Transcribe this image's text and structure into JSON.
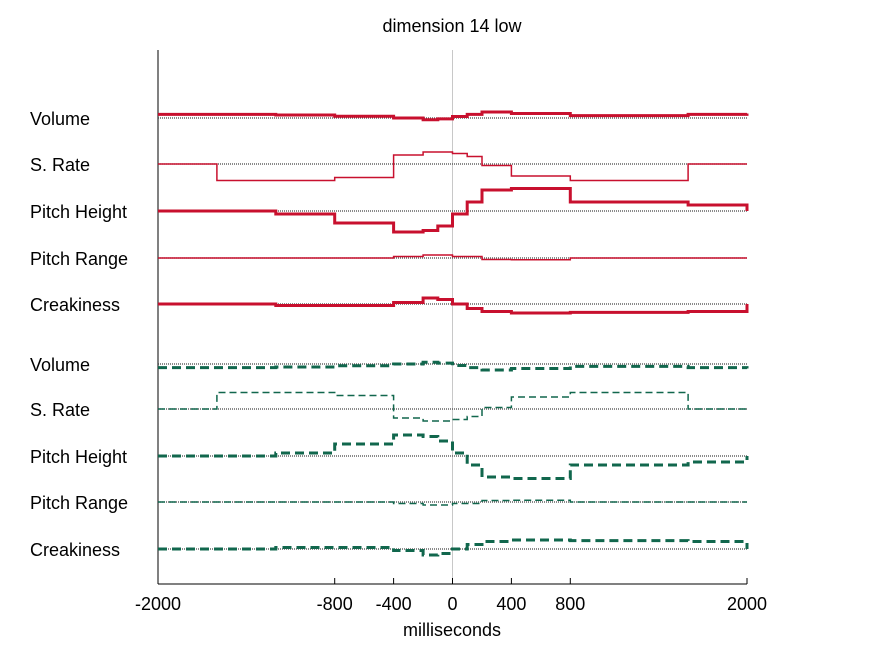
{
  "chart_data": {
    "type": "line",
    "title": "dimension 14 low",
    "xlabel": "milliseconds",
    "xlim": [
      -2000,
      2000
    ],
    "xticks": [
      -2000,
      -800,
      -400,
      0,
      400,
      800,
      2000
    ],
    "zero_line": true,
    "groups": [
      {
        "color": "#c8102e",
        "dash": "solid",
        "tracks": [
          {
            "label": "Volume",
            "width": 3,
            "points": [
              [
                -2000,
                0.12
              ],
              [
                -1200,
                0.1
              ],
              [
                -800,
                0.06
              ],
              [
                -400,
                0
              ],
              [
                -200,
                -0.06
              ],
              [
                -100,
                -0.03
              ],
              [
                0,
                0.05
              ],
              [
                100,
                0.12
              ],
              [
                200,
                0.2
              ],
              [
                400,
                0.15
              ],
              [
                800,
                0.08
              ],
              [
                1600,
                0.12
              ],
              [
                2000,
                0.15
              ]
            ]
          },
          {
            "label": "S. Rate",
            "width": 1.5,
            "points": [
              [
                -2000,
                0
              ],
              [
                -1600,
                -0.55
              ],
              [
                -800,
                -0.45
              ],
              [
                -400,
                -0.3
              ],
              [
                -400,
                0.3
              ],
              [
                -200,
                0.35
              ],
              [
                -200,
                0.4
              ],
              [
                -100,
                0.4
              ],
              [
                0,
                0.35
              ],
              [
                100,
                0.25
              ],
              [
                200,
                0.05
              ],
              [
                200,
                -0.05
              ],
              [
                400,
                -0.4
              ],
              [
                800,
                -0.55
              ],
              [
                1600,
                0
              ],
              [
                2000,
                0
              ]
            ]
          },
          {
            "label": "Pitch Height",
            "width": 3,
            "points": [
              [
                -2000,
                0
              ],
              [
                -1200,
                -0.1
              ],
              [
                -800,
                -0.4
              ],
              [
                -400,
                -0.7
              ],
              [
                -200,
                -0.65
              ],
              [
                -100,
                -0.5
              ],
              [
                0,
                -0.1
              ],
              [
                100,
                0.3
              ],
              [
                200,
                0.7
              ],
              [
                400,
                0.75
              ],
              [
                800,
                0.3
              ],
              [
                1600,
                0.2
              ],
              [
                2000,
                0
              ]
            ]
          },
          {
            "label": "Pitch Range",
            "width": 1.5,
            "points": [
              [
                -2000,
                0
              ],
              [
                -800,
                0
              ],
              [
                -400,
                0.05
              ],
              [
                -200,
                0.1
              ],
              [
                0,
                0.05
              ],
              [
                200,
                -0.05
              ],
              [
                400,
                -0.06
              ],
              [
                800,
                0
              ],
              [
                2000,
                0
              ]
            ]
          },
          {
            "label": "Creakiness",
            "width": 3,
            "points": [
              [
                -2000,
                0
              ],
              [
                -1200,
                -0.05
              ],
              [
                -800,
                -0.05
              ],
              [
                -400,
                0.05
              ],
              [
                -200,
                0.2
              ],
              [
                -100,
                0.15
              ],
              [
                0,
                0
              ],
              [
                100,
                -0.15
              ],
              [
                200,
                -0.25
              ],
              [
                400,
                -0.3
              ],
              [
                800,
                -0.28
              ],
              [
                1600,
                -0.25
              ],
              [
                2000,
                0
              ]
            ]
          }
        ]
      },
      {
        "color": "#11674d",
        "dash": "dashed",
        "tracks": [
          {
            "label": "Volume",
            "width": 3,
            "points": [
              [
                -2000,
                -0.12
              ],
              [
                -1200,
                -0.1
              ],
              [
                -800,
                -0.06
              ],
              [
                -400,
                0
              ],
              [
                -200,
                0.06
              ],
              [
                -100,
                0.03
              ],
              [
                0,
                -0.05
              ],
              [
                100,
                -0.12
              ],
              [
                200,
                -0.2
              ],
              [
                400,
                -0.15
              ],
              [
                800,
                -0.08
              ],
              [
                1600,
                -0.12
              ],
              [
                2000,
                -0.15
              ]
            ]
          },
          {
            "label": "S. Rate",
            "width": 1.5,
            "points": [
              [
                -2000,
                0
              ],
              [
                -1600,
                0.55
              ],
              [
                -800,
                0.45
              ],
              [
                -400,
                0.3
              ],
              [
                -400,
                -0.3
              ],
              [
                -200,
                -0.35
              ],
              [
                -200,
                -0.4
              ],
              [
                -100,
                -0.4
              ],
              [
                0,
                -0.35
              ],
              [
                100,
                -0.25
              ],
              [
                200,
                -0.05
              ],
              [
                200,
                0.05
              ],
              [
                400,
                0.4
              ],
              [
                800,
                0.55
              ],
              [
                1600,
                0
              ],
              [
                2000,
                0
              ]
            ]
          },
          {
            "label": "Pitch Height",
            "width": 3,
            "points": [
              [
                -2000,
                0
              ],
              [
                -1200,
                0.1
              ],
              [
                -800,
                0.4
              ],
              [
                -400,
                0.7
              ],
              [
                -200,
                0.65
              ],
              [
                -100,
                0.5
              ],
              [
                0,
                0.1
              ],
              [
                100,
                -0.3
              ],
              [
                200,
                -0.7
              ],
              [
                400,
                -0.75
              ],
              [
                800,
                -0.3
              ],
              [
                1600,
                -0.2
              ],
              [
                2000,
                0
              ]
            ]
          },
          {
            "label": "Pitch Range",
            "width": 1.5,
            "points": [
              [
                -2000,
                0
              ],
              [
                -800,
                0
              ],
              [
                -400,
                -0.05
              ],
              [
                -200,
                -0.1
              ],
              [
                0,
                -0.05
              ],
              [
                200,
                0.05
              ],
              [
                400,
                0.06
              ],
              [
                800,
                0
              ],
              [
                2000,
                0
              ]
            ]
          },
          {
            "label": "Creakiness",
            "width": 3,
            "points": [
              [
                -2000,
                0
              ],
              [
                -1200,
                0.05
              ],
              [
                -800,
                0.05
              ],
              [
                -400,
                -0.05
              ],
              [
                -200,
                -0.2
              ],
              [
                -100,
                -0.15
              ],
              [
                0,
                0
              ],
              [
                100,
                0.15
              ],
              [
                200,
                0.25
              ],
              [
                400,
                0.3
              ],
              [
                800,
                0.28
              ],
              [
                1600,
                0.25
              ],
              [
                2000,
                0
              ]
            ]
          }
        ]
      }
    ]
  }
}
